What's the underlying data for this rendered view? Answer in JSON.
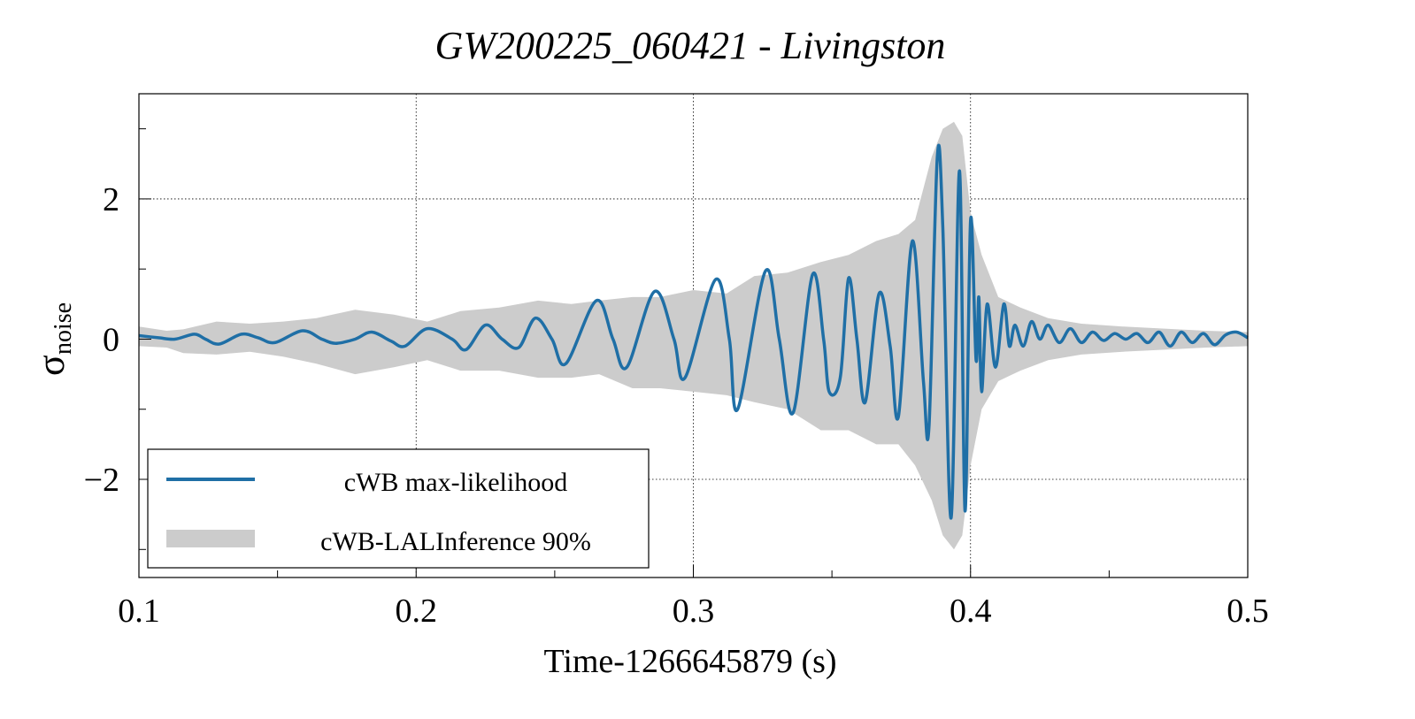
{
  "chart_data": {
    "type": "line",
    "title": "GW200225_060421 - Livingston",
    "xlabel": "Time-1266645879 (s)",
    "ylabel_main": "σ",
    "ylabel_sub": "noise",
    "xlim": [
      0.1,
      0.5
    ],
    "ylim": [
      -3.4,
      3.5
    ],
    "x_ticks": [
      0.1,
      0.2,
      0.3,
      0.4,
      0.5
    ],
    "x_tick_labels": [
      "0.1",
      "0.2",
      "0.3",
      "0.4",
      "0.5"
    ],
    "y_ticks": [
      -2,
      0,
      2
    ],
    "y_tick_labels": [
      "−2",
      "0",
      "2"
    ],
    "grid": true,
    "legend_position": "bottom-left",
    "colors": {
      "line": "#1f6fa6",
      "band": "#cccccc"
    },
    "series": [
      {
        "name": "cWB max-likelihood",
        "style": "line",
        "points": [
          [
            0.1,
            0.05
          ],
          [
            0.107,
            0.02
          ],
          [
            0.113,
            0.0
          ],
          [
            0.12,
            0.07
          ],
          [
            0.124,
            0.0
          ],
          [
            0.129,
            -0.07
          ],
          [
            0.137,
            0.07
          ],
          [
            0.143,
            0.02
          ],
          [
            0.149,
            -0.05
          ],
          [
            0.159,
            0.12
          ],
          [
            0.166,
            0.0
          ],
          [
            0.171,
            -0.06
          ],
          [
            0.178,
            0.0
          ],
          [
            0.184,
            0.1
          ],
          [
            0.191,
            -0.03
          ],
          [
            0.196,
            -0.1
          ],
          [
            0.204,
            0.15
          ],
          [
            0.213,
            0.0
          ],
          [
            0.218,
            -0.15
          ],
          [
            0.225,
            0.2
          ],
          [
            0.231,
            0.0
          ],
          [
            0.237,
            -0.12
          ],
          [
            0.243,
            0.3
          ],
          [
            0.249,
            0.0
          ],
          [
            0.254,
            -0.35
          ],
          [
            0.265,
            0.55
          ],
          [
            0.271,
            0.0
          ],
          [
            0.276,
            -0.4
          ],
          [
            0.286,
            0.68
          ],
          [
            0.293,
            0.0
          ],
          [
            0.297,
            -0.55
          ],
          [
            0.308,
            0.85
          ],
          [
            0.313,
            0.0
          ],
          [
            0.316,
            -1.0
          ],
          [
            0.326,
            0.97
          ],
          [
            0.331,
            0.0
          ],
          [
            0.336,
            -1.05
          ],
          [
            0.343,
            0.92
          ],
          [
            0.347,
            0.0
          ],
          [
            0.349,
            -0.75
          ],
          [
            0.353,
            -0.55
          ],
          [
            0.356,
            0.87
          ],
          [
            0.359,
            0.0
          ],
          [
            0.362,
            -0.9
          ],
          [
            0.367,
            0.65
          ],
          [
            0.371,
            -0.1
          ],
          [
            0.374,
            -1.1
          ],
          [
            0.379,
            1.4
          ],
          [
            0.383,
            -0.6
          ],
          [
            0.385,
            -1.25
          ],
          [
            0.388,
            2.6
          ],
          [
            0.39,
            1.6
          ],
          [
            0.393,
            -2.55
          ],
          [
            0.396,
            2.4
          ],
          [
            0.398,
            -2.45
          ],
          [
            0.4,
            1.7
          ],
          [
            0.402,
            -0.3
          ],
          [
            0.403,
            0.6
          ],
          [
            0.404,
            -0.75
          ],
          [
            0.406,
            0.5
          ],
          [
            0.409,
            -0.4
          ],
          [
            0.412,
            0.5
          ],
          [
            0.414,
            -0.1
          ],
          [
            0.416,
            0.2
          ],
          [
            0.419,
            -0.1
          ],
          [
            0.422,
            0.25
          ],
          [
            0.425,
            0.0
          ],
          [
            0.428,
            0.2
          ],
          [
            0.432,
            -0.05
          ],
          [
            0.436,
            0.15
          ],
          [
            0.44,
            -0.05
          ],
          [
            0.444,
            0.1
          ],
          [
            0.448,
            -0.02
          ],
          [
            0.452,
            0.08
          ],
          [
            0.456,
            0.0
          ],
          [
            0.46,
            0.08
          ],
          [
            0.464,
            -0.05
          ],
          [
            0.468,
            0.1
          ],
          [
            0.472,
            -0.1
          ],
          [
            0.476,
            0.1
          ],
          [
            0.48,
            -0.05
          ],
          [
            0.484,
            0.08
          ],
          [
            0.488,
            -0.08
          ],
          [
            0.492,
            0.06
          ],
          [
            0.496,
            0.1
          ],
          [
            0.5,
            0.02
          ]
        ]
      },
      {
        "name": "cWB-LALInference 90%",
        "style": "band",
        "points": [
          [
            0.1,
            -0.1,
            0.18
          ],
          [
            0.11,
            -0.12,
            0.12
          ],
          [
            0.116,
            -0.2,
            0.14
          ],
          [
            0.128,
            -0.22,
            0.25
          ],
          [
            0.14,
            -0.18,
            0.22
          ],
          [
            0.152,
            -0.25,
            0.25
          ],
          [
            0.164,
            -0.35,
            0.3
          ],
          [
            0.178,
            -0.5,
            0.42
          ],
          [
            0.192,
            -0.4,
            0.35
          ],
          [
            0.204,
            -0.3,
            0.25
          ],
          [
            0.216,
            -0.45,
            0.4
          ],
          [
            0.23,
            -0.45,
            0.45
          ],
          [
            0.244,
            -0.55,
            0.55
          ],
          [
            0.256,
            -0.55,
            0.5
          ],
          [
            0.266,
            -0.5,
            0.55
          ],
          [
            0.278,
            -0.7,
            0.6
          ],
          [
            0.288,
            -0.7,
            0.6
          ],
          [
            0.3,
            -0.75,
            0.7
          ],
          [
            0.312,
            -0.8,
            0.65
          ],
          [
            0.322,
            -0.9,
            0.9
          ],
          [
            0.334,
            -1.0,
            0.95
          ],
          [
            0.346,
            -1.3,
            1.1
          ],
          [
            0.356,
            -1.3,
            1.2
          ],
          [
            0.366,
            -1.5,
            1.4
          ],
          [
            0.374,
            -1.5,
            1.5
          ],
          [
            0.38,
            -1.8,
            1.7
          ],
          [
            0.386,
            -2.3,
            2.6
          ],
          [
            0.39,
            -2.8,
            3.0
          ],
          [
            0.394,
            -3.0,
            3.1
          ],
          [
            0.397,
            -2.8,
            2.9
          ],
          [
            0.4,
            -1.8,
            1.8
          ],
          [
            0.404,
            -1.0,
            1.2
          ],
          [
            0.41,
            -0.6,
            0.6
          ],
          [
            0.418,
            -0.45,
            0.45
          ],
          [
            0.428,
            -0.3,
            0.3
          ],
          [
            0.44,
            -0.22,
            0.22
          ],
          [
            0.455,
            -0.18,
            0.18
          ],
          [
            0.47,
            -0.15,
            0.15
          ],
          [
            0.485,
            -0.12,
            0.12
          ],
          [
            0.5,
            -0.1,
            0.1
          ]
        ]
      }
    ],
    "legend": [
      "cWB max-likelihood",
      "cWB-LALInference 90%"
    ]
  }
}
